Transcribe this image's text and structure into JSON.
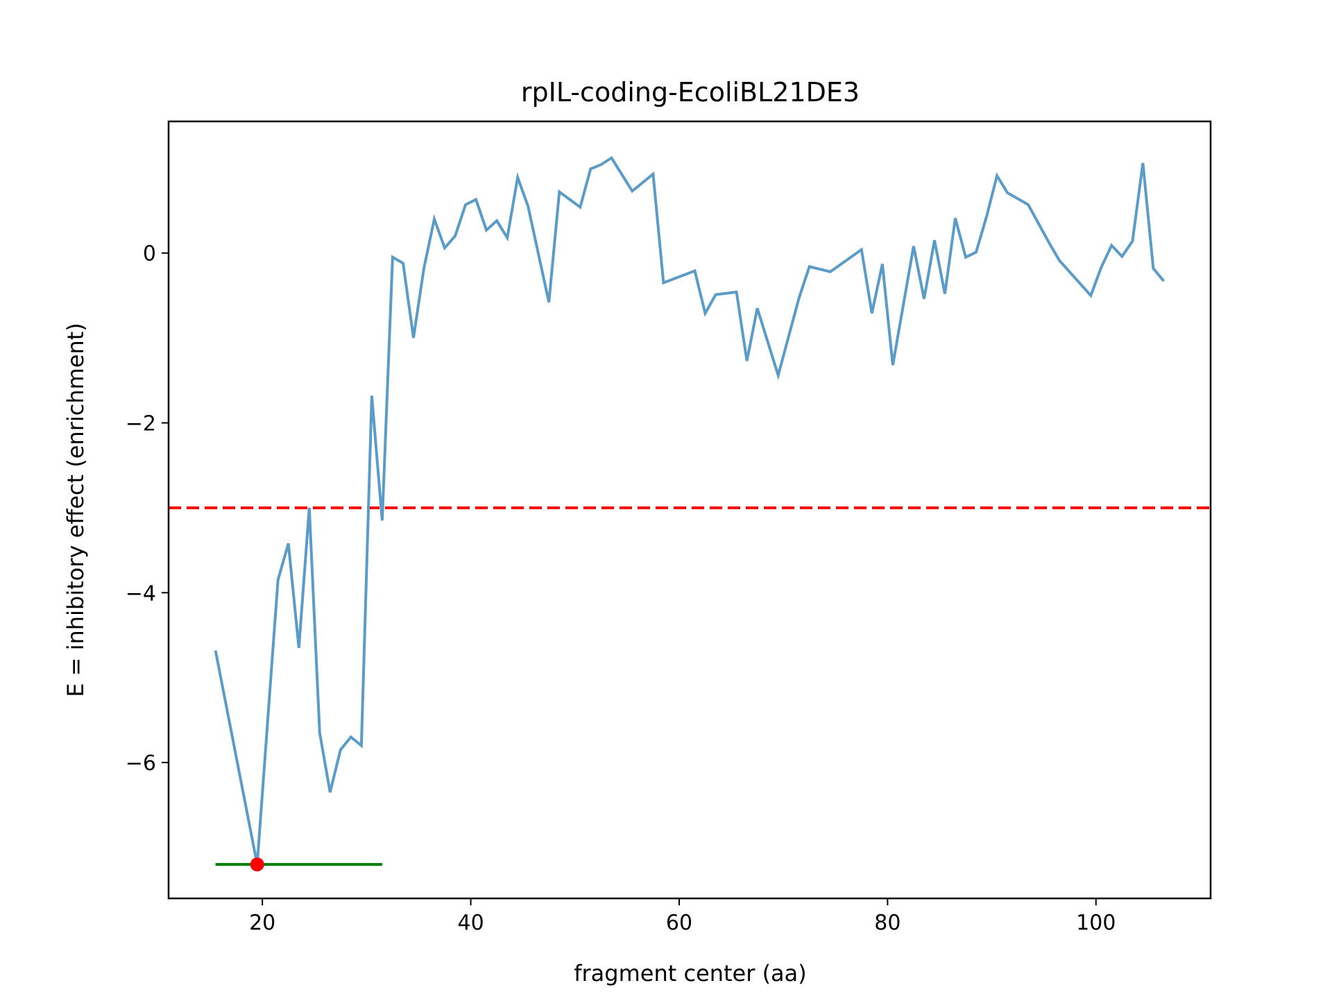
{
  "chart_data": {
    "type": "line",
    "title": "rpIL-coding-EcoliBL21DE3",
    "xlabel": "fragment center (aa)",
    "ylabel": "E = inhibitory effect (enrichment)",
    "xlim": [
      11,
      111
    ],
    "ylim": [
      -7.6,
      1.55
    ],
    "xticks": [
      20,
      40,
      60,
      80,
      100
    ],
    "yticks": [
      0,
      -2,
      -4,
      -6
    ],
    "ytick_labels": [
      "0",
      "−2",
      "−4",
      "−6"
    ],
    "grid": false,
    "series": [
      {
        "color": "#5b9bc8",
        "x": [
          15.5,
          19.5,
          21.5,
          22.5,
          23.5,
          24.5,
          25.5,
          26.5,
          27.5,
          28.5,
          29.5,
          30.5,
          31.5,
          32.5,
          33.5,
          34.5,
          35.5,
          36.5,
          37.5,
          38.5,
          39.5,
          40.5,
          41.5,
          42.5,
          43.5,
          44.5,
          45.5,
          47.5,
          48.5,
          50.5,
          51.5,
          52.5,
          53.5,
          55.5,
          57.5,
          58.5,
          61.5,
          62.5,
          63.5,
          65.5,
          66.5,
          67.5,
          69.5,
          71.5,
          72.5,
          74.5,
          77.5,
          78.5,
          79.5,
          80.5,
          82.5,
          83.5,
          84.5,
          85.5,
          86.5,
          87.5,
          88.5,
          89.5,
          90.5,
          91.5,
          93.5,
          95.5,
          96.5,
          99.5,
          100.5,
          101.5,
          102.5,
          103.5,
          104.5,
          105.5,
          106.5
        ],
        "y": [
          -4.68,
          -7.2,
          -3.85,
          -3.42,
          -4.65,
          -3.0,
          -5.65,
          -6.35,
          -5.85,
          -5.7,
          -5.8,
          -1.68,
          -3.15,
          -0.05,
          -0.12,
          -1.0,
          -0.18,
          0.4,
          0.06,
          0.2,
          0.57,
          0.63,
          0.27,
          0.38,
          0.18,
          0.89,
          0.55,
          -0.58,
          0.72,
          0.54,
          0.99,
          1.04,
          1.12,
          0.73,
          0.93,
          -0.35,
          -0.21,
          -0.71,
          -0.49,
          -0.46,
          -1.27,
          -0.65,
          -1.44,
          -0.53,
          -0.16,
          -0.22,
          0.04,
          -0.71,
          -0.13,
          -1.32,
          0.08,
          -0.54,
          0.15,
          -0.48,
          0.41,
          -0.05,
          0.01,
          0.43,
          0.91,
          0.71,
          0.57,
          0.12,
          -0.09,
          -0.5,
          -0.17,
          0.09,
          -0.04,
          0.14,
          1.06,
          -0.18,
          -0.33
        ]
      }
    ],
    "threshold": {
      "y": -3.0,
      "color": "#ff0000",
      "style": "dashed"
    },
    "range_bar": {
      "x_start": 15.5,
      "x_end": 31.5,
      "y": -7.2,
      "color": "#008000"
    },
    "minimum_point": {
      "x": 19.5,
      "y": -7.2,
      "color": "#ff0000"
    }
  }
}
